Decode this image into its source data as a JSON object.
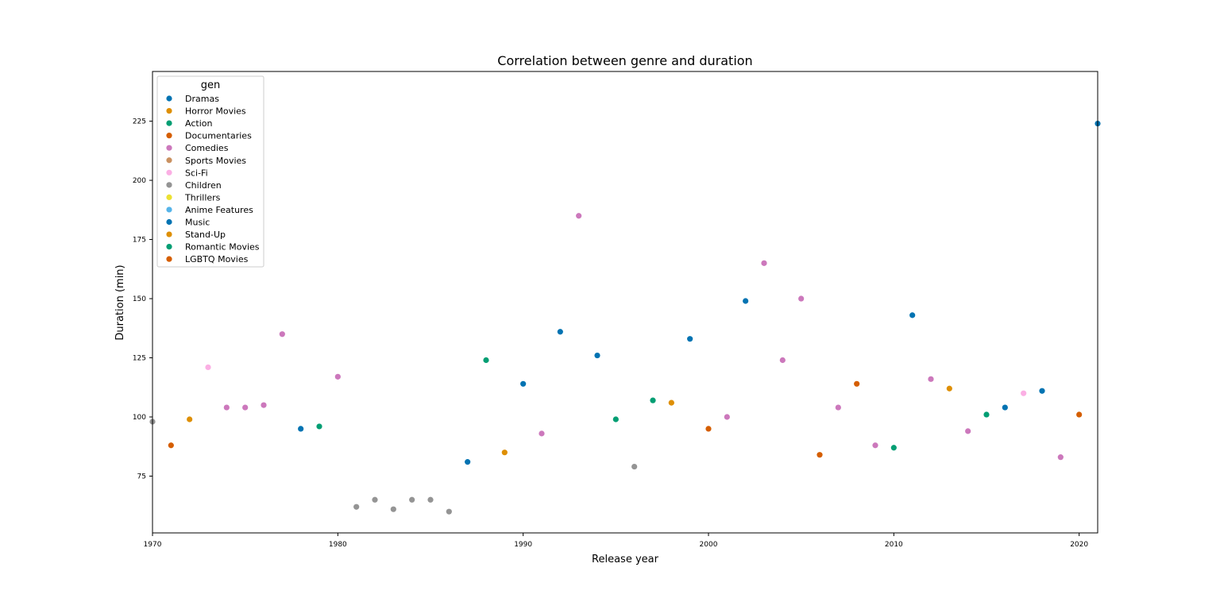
{
  "chart_data": {
    "type": "scatter",
    "title": "Correlation between genre and duration",
    "xlabel": "Release year",
    "ylabel": "Duration (min)",
    "xlim": [
      1970,
      2021
    ],
    "ylim": [
      51,
      246
    ],
    "xticks": [
      1970,
      1980,
      1990,
      2000,
      2010,
      2020
    ],
    "yticks": [
      75,
      100,
      125,
      150,
      175,
      200,
      225
    ],
    "grid": false,
    "legend": {
      "title": "gen",
      "placement": "top-left",
      "entries": [
        {
          "name": "Dramas",
          "color": "#0173b2"
        },
        {
          "name": "Horror Movies",
          "color": "#de8f05"
        },
        {
          "name": "Action",
          "color": "#029e73"
        },
        {
          "name": "Documentaries",
          "color": "#d55e00"
        },
        {
          "name": "Comedies",
          "color": "#cc78bc"
        },
        {
          "name": "Sports Movies",
          "color": "#ca9161"
        },
        {
          "name": "Sci-Fi",
          "color": "#fbafe4"
        },
        {
          "name": "Children",
          "color": "#949494"
        },
        {
          "name": "Thrillers",
          "color": "#ece133"
        },
        {
          "name": "Anime Features",
          "color": "#56b4e9"
        },
        {
          "name": "Music",
          "color": "#0173b2"
        },
        {
          "name": "Stand-Up",
          "color": "#de8f05"
        },
        {
          "name": "Romantic Movies",
          "color": "#029e73"
        },
        {
          "name": "LGBTQ Movies",
          "color": "#d55e00"
        }
      ]
    },
    "points": [
      {
        "x": 1970,
        "y": 98,
        "genre": "Children"
      },
      {
        "x": 1971,
        "y": 88,
        "genre": "Documentaries"
      },
      {
        "x": 1972,
        "y": 99,
        "genre": "Horror Movies"
      },
      {
        "x": 1973,
        "y": 121,
        "genre": "Sci-Fi"
      },
      {
        "x": 1974,
        "y": 104,
        "genre": "Comedies"
      },
      {
        "x": 1975,
        "y": 104,
        "genre": "Comedies"
      },
      {
        "x": 1976,
        "y": 105,
        "genre": "Comedies"
      },
      {
        "x": 1977,
        "y": 135,
        "genre": "Comedies"
      },
      {
        "x": 1978,
        "y": 95,
        "genre": "Dramas"
      },
      {
        "x": 1979,
        "y": 96,
        "genre": "Action"
      },
      {
        "x": 1980,
        "y": 117,
        "genre": "Comedies"
      },
      {
        "x": 1981,
        "y": 62,
        "genre": "Children"
      },
      {
        "x": 1982,
        "y": 65,
        "genre": "Children"
      },
      {
        "x": 1983,
        "y": 61,
        "genre": "Children"
      },
      {
        "x": 1984,
        "y": 65,
        "genre": "Children"
      },
      {
        "x": 1985,
        "y": 65,
        "genre": "Children"
      },
      {
        "x": 1986,
        "y": 60,
        "genre": "Children"
      },
      {
        "x": 1987,
        "y": 81,
        "genre": "Dramas"
      },
      {
        "x": 1988,
        "y": 124,
        "genre": "Action"
      },
      {
        "x": 1989,
        "y": 85,
        "genre": "Horror Movies"
      },
      {
        "x": 1990,
        "y": 114,
        "genre": "Dramas"
      },
      {
        "x": 1991,
        "y": 93,
        "genre": "Comedies"
      },
      {
        "x": 1992,
        "y": 136,
        "genre": "Dramas"
      },
      {
        "x": 1993,
        "y": 185,
        "genre": "Comedies"
      },
      {
        "x": 1994,
        "y": 126,
        "genre": "Dramas"
      },
      {
        "x": 1995,
        "y": 99,
        "genre": "Action"
      },
      {
        "x": 1996,
        "y": 79,
        "genre": "Children"
      },
      {
        "x": 1997,
        "y": 107,
        "genre": "Action"
      },
      {
        "x": 1998,
        "y": 106,
        "genre": "Horror Movies"
      },
      {
        "x": 1999,
        "y": 133,
        "genre": "Dramas"
      },
      {
        "x": 2000,
        "y": 95,
        "genre": "Documentaries"
      },
      {
        "x": 2001,
        "y": 100,
        "genre": "Comedies"
      },
      {
        "x": 2002,
        "y": 149,
        "genre": "Dramas"
      },
      {
        "x": 2003,
        "y": 165,
        "genre": "Comedies"
      },
      {
        "x": 2004,
        "y": 124,
        "genre": "Comedies"
      },
      {
        "x": 2005,
        "y": 150,
        "genre": "Comedies"
      },
      {
        "x": 2006,
        "y": 84,
        "genre": "Documentaries"
      },
      {
        "x": 2007,
        "y": 104,
        "genre": "Comedies"
      },
      {
        "x": 2008,
        "y": 114,
        "genre": "Documentaries"
      },
      {
        "x": 2009,
        "y": 88,
        "genre": "Comedies"
      },
      {
        "x": 2010,
        "y": 87,
        "genre": "Action"
      },
      {
        "x": 2011,
        "y": 143,
        "genre": "Dramas"
      },
      {
        "x": 2012,
        "y": 116,
        "genre": "Comedies"
      },
      {
        "x": 2013,
        "y": 112,
        "genre": "Horror Movies"
      },
      {
        "x": 2014,
        "y": 94,
        "genre": "Comedies"
      },
      {
        "x": 2015,
        "y": 101,
        "genre": "Action"
      },
      {
        "x": 2016,
        "y": 104,
        "genre": "Dramas"
      },
      {
        "x": 2017,
        "y": 110,
        "genre": "Sci-Fi"
      },
      {
        "x": 2018,
        "y": 111,
        "genre": "Dramas"
      },
      {
        "x": 2019,
        "y": 83,
        "genre": "Comedies"
      },
      {
        "x": 2020,
        "y": 101,
        "genre": "Documentaries"
      },
      {
        "x": 2021,
        "y": 224,
        "genre": "Dramas"
      }
    ]
  }
}
